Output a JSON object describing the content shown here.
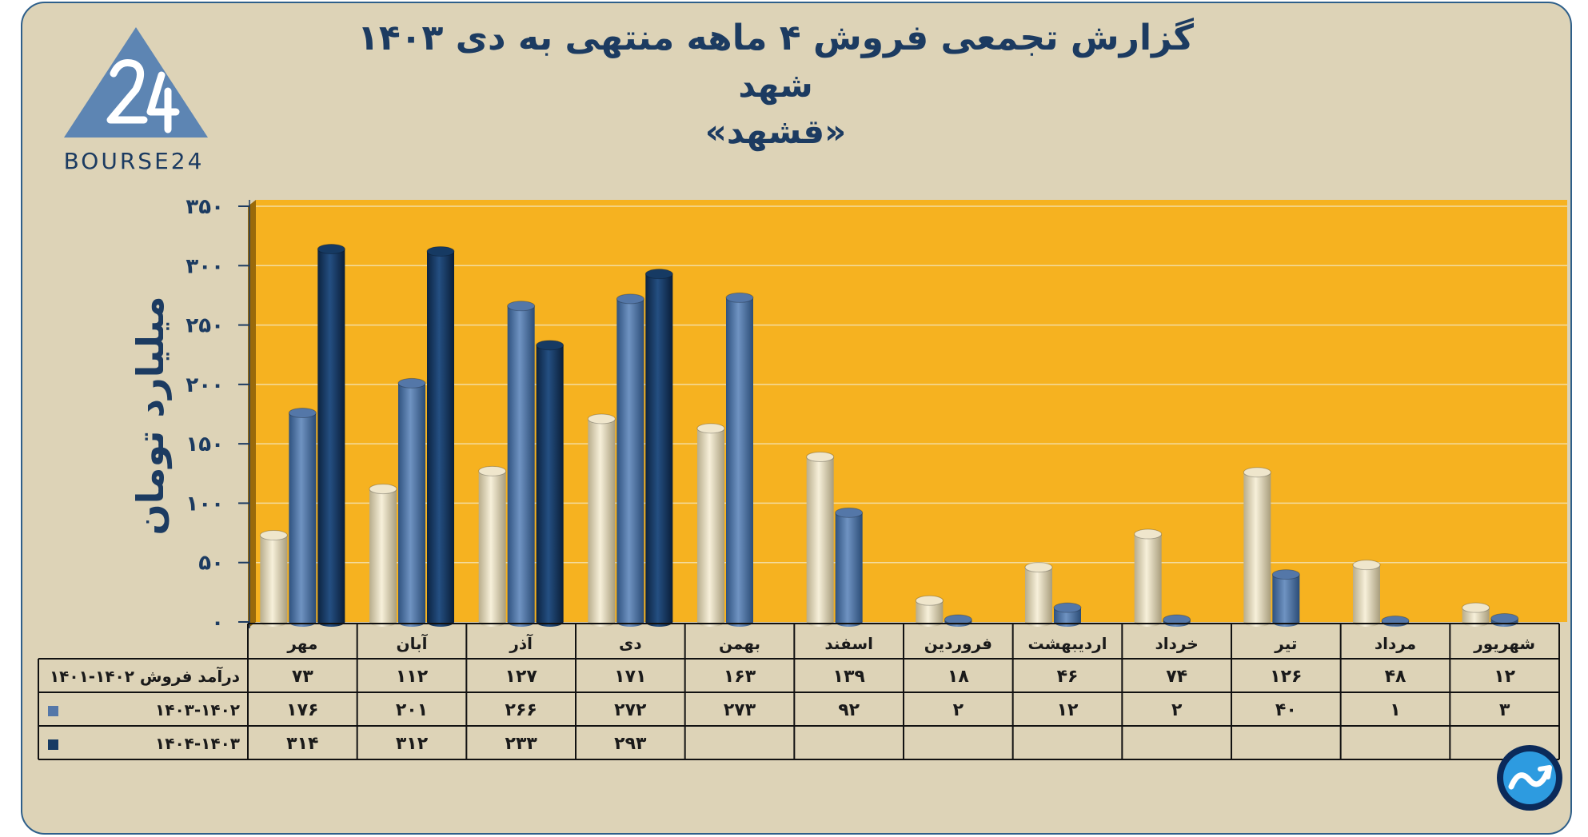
{
  "title": {
    "line1": "گزارش تجمعی فروش ۴ ماهه منتهی به دی ۱۴۰۳",
    "line2": "شهد",
    "line3": "«قشهد»"
  },
  "brand": {
    "logo_text": "BOURSE24"
  },
  "chart_data": {
    "type": "bar",
    "ylabel": "میلیارد تومان",
    "ylim": [
      0,
      350
    ],
    "yticks": [
      0,
      50,
      100,
      150,
      200,
      250,
      300,
      350
    ],
    "ytick_labels": [
      "۰",
      "۵۰",
      "۱۰۰",
      "۱۵۰",
      "۲۰۰",
      "۲۵۰",
      "۳۰۰",
      "۳۵۰"
    ],
    "grid": true,
    "categories": [
      "مهر",
      "آبان",
      "آذر",
      "دی",
      "بهمن",
      "اسفند",
      "فروردین",
      "اردیبهشت",
      "خرداد",
      "تیر",
      "مرداد",
      "شهریور"
    ],
    "series": [
      {
        "name": "درآمد فروش ۱۴۰۲-۱۴۰۱",
        "color": "#efe6cc",
        "values": [
          73,
          112,
          127,
          171,
          163,
          139,
          18,
          46,
          74,
          126,
          48,
          12
        ],
        "labels": [
          "۷۳",
          "۱۱۲",
          "۱۲۷",
          "۱۷۱",
          "۱۶۳",
          "۱۳۹",
          "۱۸",
          "۴۶",
          "۷۴",
          "۱۲۶",
          "۴۸",
          "۱۲"
        ]
      },
      {
        "name": "۱۴۰۳-۱۴۰۲",
        "color": "#5477a8",
        "values": [
          176,
          201,
          266,
          272,
          273,
          92,
          2,
          12,
          2,
          40,
          1,
          3
        ],
        "labels": [
          "۱۷۶",
          "۲۰۱",
          "۲۶۶",
          "۲۷۲",
          "۲۷۳",
          "۹۲",
          "۲",
          "۱۲",
          "۲",
          "۴۰",
          "۱",
          "۳"
        ]
      },
      {
        "name": "۱۴۰۴-۱۴۰۳",
        "color": "#163a63",
        "values": [
          314,
          312,
          233,
          293,
          null,
          null,
          null,
          null,
          null,
          null,
          null,
          null
        ],
        "labels": [
          "۳۱۴",
          "۳۱۲",
          "۲۳۳",
          "۲۹۳",
          "",
          "",
          "",
          "",
          "",
          "",
          "",
          ""
        ]
      }
    ]
  }
}
